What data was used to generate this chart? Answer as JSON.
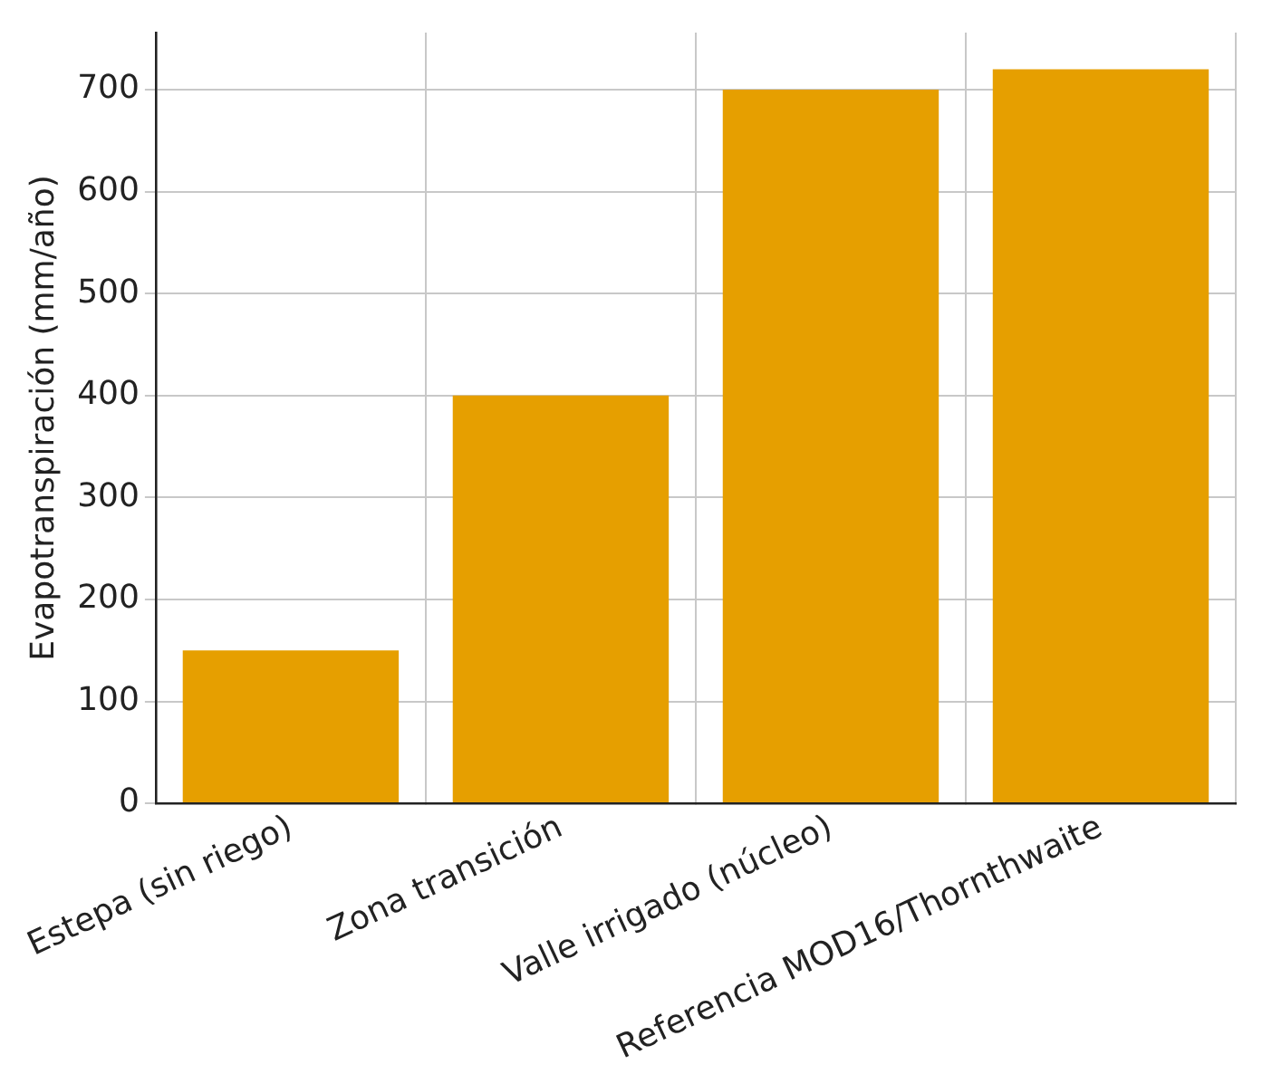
{
  "chart_data": {
    "type": "bar",
    "ylabel": "Evapotranspiración (mm/año)",
    "categories": [
      "Estepa (sin riego)",
      "Zona transición",
      "Valle irrigado (núcleo)",
      "Referencia MOD16/Thornthwaite"
    ],
    "values": [
      150,
      400,
      700,
      720
    ],
    "color": "#e69f00",
    "ylim": [
      0,
      756
    ],
    "yticks": [
      0,
      100,
      200,
      300,
      400,
      500,
      600,
      700
    ],
    "grid": true
  }
}
